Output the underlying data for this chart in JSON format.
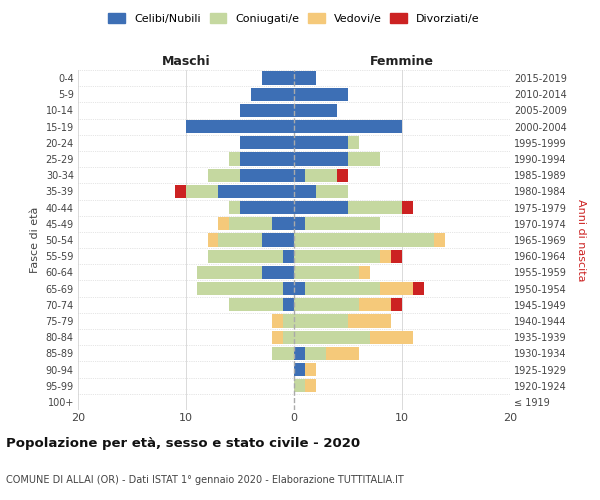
{
  "age_groups": [
    "100+",
    "95-99",
    "90-94",
    "85-89",
    "80-84",
    "75-79",
    "70-74",
    "65-69",
    "60-64",
    "55-59",
    "50-54",
    "45-49",
    "40-44",
    "35-39",
    "30-34",
    "25-29",
    "20-24",
    "15-19",
    "10-14",
    "5-9",
    "0-4"
  ],
  "birth_years": [
    "≤ 1919",
    "1920-1924",
    "1925-1929",
    "1930-1934",
    "1935-1939",
    "1940-1944",
    "1945-1949",
    "1950-1954",
    "1955-1959",
    "1960-1964",
    "1965-1969",
    "1970-1974",
    "1975-1979",
    "1980-1984",
    "1985-1989",
    "1990-1994",
    "1995-1999",
    "2000-2004",
    "2005-2009",
    "2010-2014",
    "2015-2019"
  ],
  "colors": {
    "celibi": "#3d6fb5",
    "coniugati": "#c5d8a0",
    "vedovi": "#f5c97a",
    "divorziati": "#cc2222"
  },
  "maschi": {
    "celibi": [
      0,
      0,
      0,
      0,
      0,
      0,
      1,
      1,
      3,
      1,
      3,
      2,
      5,
      7,
      5,
      5,
      5,
      10,
      5,
      4,
      3
    ],
    "coniugati": [
      0,
      0,
      0,
      2,
      1,
      1,
      5,
      8,
      6,
      7,
      4,
      4,
      1,
      3,
      3,
      1,
      0,
      0,
      0,
      0,
      0
    ],
    "vedovi": [
      0,
      0,
      0,
      0,
      1,
      1,
      0,
      0,
      0,
      0,
      1,
      1,
      0,
      0,
      0,
      0,
      0,
      0,
      0,
      0,
      0
    ],
    "divorziati": [
      0,
      0,
      0,
      0,
      0,
      0,
      0,
      0,
      0,
      0,
      0,
      0,
      0,
      1,
      0,
      0,
      0,
      0,
      0,
      0,
      0
    ]
  },
  "femmine": {
    "celibi": [
      0,
      0,
      1,
      1,
      0,
      0,
      0,
      1,
      0,
      0,
      0,
      1,
      5,
      2,
      1,
      5,
      5,
      10,
      4,
      5,
      2
    ],
    "coniugati": [
      0,
      1,
      0,
      2,
      7,
      5,
      6,
      7,
      6,
      8,
      13,
      7,
      5,
      3,
      3,
      3,
      1,
      0,
      0,
      0,
      0
    ],
    "vedovi": [
      0,
      1,
      1,
      3,
      4,
      4,
      3,
      3,
      1,
      1,
      1,
      0,
      0,
      0,
      0,
      0,
      0,
      0,
      0,
      0,
      0
    ],
    "divorziati": [
      0,
      0,
      0,
      0,
      0,
      0,
      1,
      1,
      0,
      1,
      0,
      0,
      1,
      0,
      1,
      0,
      0,
      0,
      0,
      0,
      0
    ]
  },
  "title": "Popolazione per età, sesso e stato civile - 2020",
  "subtitle": "COMUNE DI ALLAI (OR) - Dati ISTAT 1° gennaio 2020 - Elaborazione TUTTITALIA.IT",
  "xlabel_left": "Maschi",
  "xlabel_right": "Femmine",
  "ylabel_left": "Fasce di età",
  "ylabel_right": "Anni di nascita",
  "xlim": 20
}
